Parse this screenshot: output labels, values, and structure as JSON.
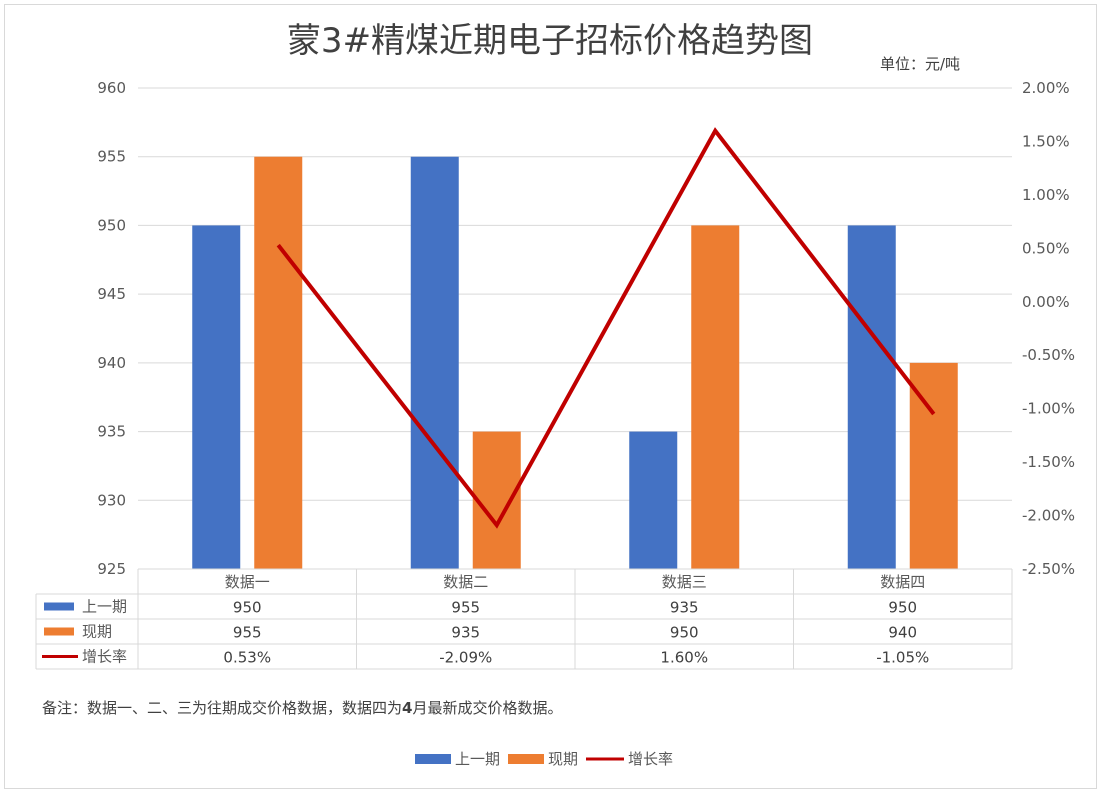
{
  "chart_data": {
    "type": "bar",
    "title": "蒙3#精煤近期电子招标价格趋势图",
    "unit_label": "单位：元/吨",
    "categories": [
      "数据一",
      "数据二",
      "数据三",
      "数据四"
    ],
    "ylim": [
      925,
      960
    ],
    "y_ticks": [
      "960",
      "955",
      "950",
      "945",
      "940",
      "935",
      "930",
      "925"
    ],
    "y2lim": [
      -2.5,
      2.0
    ],
    "y2_ticks": [
      "2.00%",
      "1.50%",
      "1.00%",
      "0.50%",
      "0.00%",
      "-0.50%",
      "-1.00%",
      "-1.50%",
      "-2.00%",
      "-2.50%"
    ],
    "series": [
      {
        "name": "上一期",
        "kind": "bar",
        "axis": "left",
        "color": "#4472c4",
        "values": [
          950,
          955,
          935,
          950
        ],
        "labels": [
          "950",
          "955",
          "935",
          "950"
        ]
      },
      {
        "name": "现期",
        "kind": "bar",
        "axis": "left",
        "color": "#ed7d31",
        "values": [
          955,
          935,
          950,
          940
        ],
        "labels": [
          "955",
          "935",
          "950",
          "940"
        ]
      },
      {
        "name": "增长率",
        "kind": "line",
        "axis": "right",
        "color": "#c00000",
        "values": [
          0.53,
          -2.09,
          1.6,
          -1.05
        ],
        "labels": [
          "0.53%",
          "-2.09%",
          "1.60%",
          "-1.05%"
        ]
      }
    ],
    "grid": true,
    "legend_placement": "bottom",
    "data_table": true
  },
  "note": {
    "prefix": "备注：数据一、二、三为往期成交价格数据，数据四为",
    "bold": "4",
    "suffix": "月最新成交价格数据。"
  }
}
